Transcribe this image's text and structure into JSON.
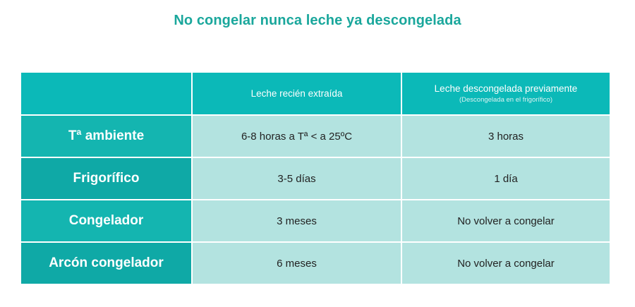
{
  "title": "No congelar nunca leche ya descongelada",
  "table": {
    "headers": [
      {
        "label": "",
        "sub": ""
      },
      {
        "label": "Leche recién extraída",
        "sub": ""
      },
      {
        "label": "Leche descongelada previamente",
        "sub": "(Descongelada en el frigorífico)"
      }
    ],
    "rows": [
      {
        "label": "Tª ambiente",
        "fresh": "6-8 horas a Tª < a  25ºC",
        "thawed": "3 horas"
      },
      {
        "label": "Frigorífico",
        "fresh": "3-5 días",
        "thawed": "1 día"
      },
      {
        "label": "Congelador",
        "fresh": "3 meses",
        "thawed": "No volver a congelar"
      },
      {
        "label": "Arcón congelador",
        "fresh": "6 meses",
        "thawed": "No volver a congelar"
      }
    ]
  },
  "colors": {
    "title": "#1aa79c",
    "header": "#0bb9b8",
    "row_header_light": "#14b5b0",
    "row_header_dark": "#0fa9a6",
    "value_cell": "#b3e3e0"
  }
}
